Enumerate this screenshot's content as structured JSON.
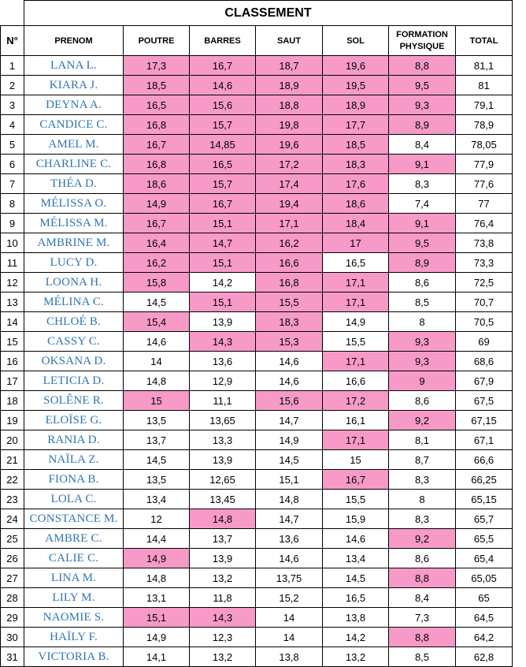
{
  "title": "CLASSEMENT",
  "highlight_color": "#f79ac8",
  "name_color": "#2e75b6",
  "columns": [
    "N°",
    "PRENOM",
    "POUTRE",
    "BARRES",
    "SAUT",
    "SOL",
    "FORMATION PHYSIQUE",
    "TOTAL"
  ],
  "rows": [
    {
      "n": "1",
      "name": "LANA L.",
      "poutre": "17,3",
      "barres": "16,7",
      "saut": "18,7",
      "sol": "19,6",
      "fp": "8,8",
      "total": "81,1",
      "hl": [
        1,
        1,
        1,
        1,
        1
      ]
    },
    {
      "n": "2",
      "name": "KIARA J.",
      "poutre": "18,5",
      "barres": "14,6",
      "saut": "18,9",
      "sol": "19,5",
      "fp": "9,5",
      "total": "81",
      "hl": [
        1,
        1,
        1,
        1,
        1
      ]
    },
    {
      "n": "3",
      "name": "DEYNA A.",
      "poutre": "16,5",
      "barres": "15,6",
      "saut": "18,8",
      "sol": "18,9",
      "fp": "9,3",
      "total": "79,1",
      "hl": [
        1,
        1,
        1,
        1,
        1
      ]
    },
    {
      "n": "4",
      "name": "CANDICE C.",
      "poutre": "16,8",
      "barres": "15,7",
      "saut": "19,8",
      "sol": "17,7",
      "fp": "8,9",
      "total": "78,9",
      "hl": [
        1,
        1,
        1,
        1,
        1
      ]
    },
    {
      "n": "5",
      "name": "AMEL M.",
      "poutre": "16,7",
      "barres": "14,85",
      "saut": "19,6",
      "sol": "18,5",
      "fp": "8,4",
      "total": "78,05",
      "hl": [
        1,
        1,
        1,
        1,
        0
      ]
    },
    {
      "n": "6",
      "name": "CHARLINE C.",
      "poutre": "16,8",
      "barres": "16,5",
      "saut": "17,2",
      "sol": "18,3",
      "fp": "9,1",
      "total": "77,9",
      "hl": [
        1,
        1,
        1,
        1,
        1
      ]
    },
    {
      "n": "7",
      "name": "THÉA D.",
      "poutre": "18,6",
      "barres": "15,7",
      "saut": "17,4",
      "sol": "17,6",
      "fp": "8,3",
      "total": "77,6",
      "hl": [
        1,
        1,
        1,
        1,
        0
      ]
    },
    {
      "n": "8",
      "name": "MÉLISSA O.",
      "poutre": "14,9",
      "barres": "16,7",
      "saut": "19,4",
      "sol": "18,6",
      "fp": "7,4",
      "total": "77",
      "hl": [
        1,
        1,
        1,
        1,
        0
      ]
    },
    {
      "n": "9",
      "name": "MÉLISSA M.",
      "poutre": "16,7",
      "barres": "15,1",
      "saut": "17,1",
      "sol": "18,4",
      "fp": "9,1",
      "total": "76,4",
      "hl": [
        1,
        1,
        1,
        1,
        1
      ]
    },
    {
      "n": "10",
      "name": "AMBRINE M.",
      "poutre": "16,4",
      "barres": "14,7",
      "saut": "16,2",
      "sol": "17",
      "fp": "9,5",
      "total": "73,8",
      "hl": [
        1,
        1,
        1,
        1,
        1
      ]
    },
    {
      "n": "11",
      "name": "LUCY D.",
      "poutre": "16,2",
      "barres": "15,1",
      "saut": "16,6",
      "sol": "16,5",
      "fp": "8,9",
      "total": "73,3",
      "hl": [
        1,
        1,
        1,
        0,
        1
      ]
    },
    {
      "n": "12",
      "name": "LOONA H.",
      "poutre": "15,8",
      "barres": "14,2",
      "saut": "16,8",
      "sol": "17,1",
      "fp": "8,6",
      "total": "72,5",
      "hl": [
        1,
        0,
        1,
        1,
        0
      ]
    },
    {
      "n": "13",
      "name": "MÉLINA C.",
      "poutre": "14,5",
      "barres": "15,1",
      "saut": "15,5",
      "sol": "17,1",
      "fp": "8,5",
      "total": "70,7",
      "hl": [
        0,
        1,
        1,
        1,
        0
      ]
    },
    {
      "n": "14",
      "name": "CHLOÉ B.",
      "poutre": "15,4",
      "barres": "13,9",
      "saut": "18,3",
      "sol": "14,9",
      "fp": "8",
      "total": "70,5",
      "hl": [
        1,
        0,
        1,
        0,
        0
      ]
    },
    {
      "n": "15",
      "name": "CASSY C.",
      "poutre": "14,6",
      "barres": "14,3",
      "saut": "15,3",
      "sol": "15,5",
      "fp": "9,3",
      "total": "69",
      "hl": [
        0,
        1,
        1,
        0,
        1
      ]
    },
    {
      "n": "16",
      "name": "OKSANA D.",
      "poutre": "14",
      "barres": "13,6",
      "saut": "14,6",
      "sol": "17,1",
      "fp": "9,3",
      "total": "68,6",
      "hl": [
        0,
        0,
        0,
        1,
        1
      ]
    },
    {
      "n": "17",
      "name": "LETICIA D.",
      "poutre": "14,8",
      "barres": "12,9",
      "saut": "14,6",
      "sol": "16,6",
      "fp": "9",
      "total": "67,9",
      "hl": [
        0,
        0,
        0,
        0,
        1
      ]
    },
    {
      "n": "18",
      "name": "SOLÊNE R.",
      "poutre": "15",
      "barres": "11,1",
      "saut": "15,6",
      "sol": "17,2",
      "fp": "8,6",
      "total": "67,5",
      "hl": [
        1,
        0,
        1,
        1,
        0
      ]
    },
    {
      "n": "19",
      "name": "ELOÏSE G.",
      "poutre": "13,5",
      "barres": "13,65",
      "saut": "14,7",
      "sol": "16,1",
      "fp": "9,2",
      "total": "67,15",
      "hl": [
        0,
        0,
        0,
        0,
        1
      ]
    },
    {
      "n": "20",
      "name": "RANIA D.",
      "poutre": "13,7",
      "barres": "13,3",
      "saut": "14,9",
      "sol": "17,1",
      "fp": "8,1",
      "total": "67,1",
      "hl": [
        0,
        0,
        0,
        1,
        0
      ]
    },
    {
      "n": "21",
      "name": "NAÏLA Z.",
      "poutre": "14,5",
      "barres": "13,9",
      "saut": "14,5",
      "sol": "15",
      "fp": "8,7",
      "total": "66,6",
      "hl": [
        0,
        0,
        0,
        0,
        0
      ]
    },
    {
      "n": "22",
      "name": "FIONA B.",
      "poutre": "13,5",
      "barres": "12,65",
      "saut": "15,1",
      "sol": "16,7",
      "fp": "8,3",
      "total": "66,25",
      "hl": [
        0,
        0,
        0,
        1,
        0
      ]
    },
    {
      "n": "23",
      "name": "LOLA C.",
      "poutre": "13,4",
      "barres": "13,45",
      "saut": "14,8",
      "sol": "15,5",
      "fp": "8",
      "total": "65,15",
      "hl": [
        0,
        0,
        0,
        0,
        0
      ]
    },
    {
      "n": "24",
      "name": "CONSTANCE M.",
      "poutre": "12",
      "barres": "14,8",
      "saut": "14,7",
      "sol": "15,9",
      "fp": "8,3",
      "total": "65,7",
      "hl": [
        0,
        1,
        0,
        0,
        0
      ]
    },
    {
      "n": "25",
      "name": "AMBRE C.",
      "poutre": "14,4",
      "barres": "13,7",
      "saut": "13,6",
      "sol": "14,6",
      "fp": "9,2",
      "total": "65,5",
      "hl": [
        0,
        0,
        0,
        0,
        1
      ]
    },
    {
      "n": "26",
      "name": "CALIE C.",
      "poutre": "14,9",
      "barres": "13,9",
      "saut": "14,6",
      "sol": "13,4",
      "fp": "8,6",
      "total": "65,4",
      "hl": [
        1,
        0,
        0,
        0,
        0
      ]
    },
    {
      "n": "27",
      "name": "LINA M.",
      "poutre": "14,8",
      "barres": "13,2",
      "saut": "13,75",
      "sol": "14,5",
      "fp": "8,8",
      "total": "65,05",
      "hl": [
        0,
        0,
        0,
        0,
        1
      ]
    },
    {
      "n": "28",
      "name": "LILY M.",
      "poutre": "13,1",
      "barres": "11,8",
      "saut": "15,2",
      "sol": "16,5",
      "fp": "8,4",
      "total": "65",
      "hl": [
        0,
        0,
        0,
        0,
        0
      ]
    },
    {
      "n": "29",
      "name": "NAOMIE S.",
      "poutre": "15,1",
      "barres": "14,3",
      "saut": "14",
      "sol": "13,8",
      "fp": "7,3",
      "total": "64,5",
      "hl": [
        1,
        1,
        0,
        0,
        0
      ]
    },
    {
      "n": "30",
      "name": "HAÏLY F.",
      "poutre": "14,9",
      "barres": "12,3",
      "saut": "14",
      "sol": "14,2",
      "fp": "8,8",
      "total": "64,2",
      "hl": [
        0,
        0,
        0,
        0,
        1
      ]
    },
    {
      "n": "31",
      "name": "VICTORIA B.",
      "poutre": "14,1",
      "barres": "13,2",
      "saut": "13,8",
      "sol": "13,2",
      "fp": "8,5",
      "total": "62,8",
      "hl": [
        0,
        0,
        0,
        0,
        0
      ]
    }
  ]
}
